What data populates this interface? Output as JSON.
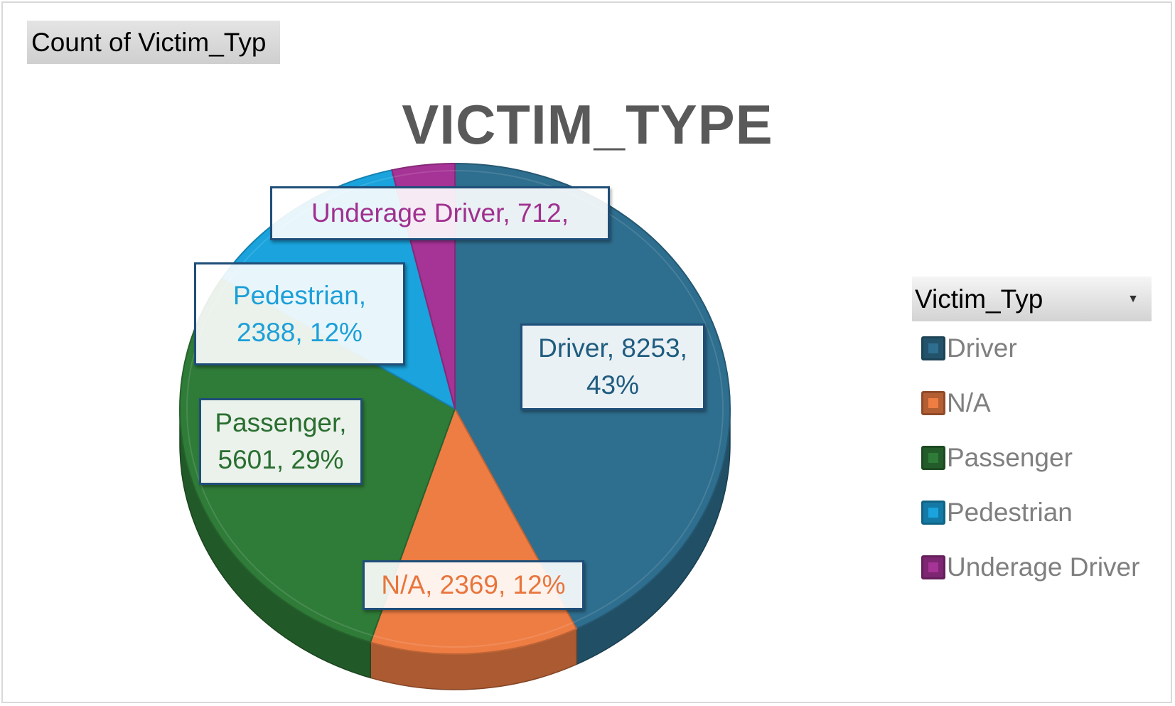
{
  "field_button": {
    "label": "Count of Victim_Typ"
  },
  "legend": {
    "header": "Victim_Typ",
    "dropdown_icon": "dropdown-arrow-icon",
    "items": [
      {
        "label": "Driver",
        "color": "#2e6e8e"
      },
      {
        "label": "N/A",
        "color": "#ee7d44"
      },
      {
        "label": "Passenger",
        "color": "#2f7b38"
      },
      {
        "label": "Pedestrian",
        "color": "#1aa3dc"
      },
      {
        "label": "Underage Driver",
        "color": "#a63396"
      }
    ]
  },
  "chart_data": {
    "type": "pie",
    "title": "VICTIM_TYPE",
    "categories": [
      "Driver",
      "N/A",
      "Passenger",
      "Pedestrian",
      "Underage Driver"
    ],
    "values": [
      8253,
      2369,
      5601,
      2388,
      712
    ],
    "percentages": [
      "43%",
      "12%",
      "29%",
      "12%",
      ""
    ],
    "data_labels": {
      "Driver": [
        "Driver, 8253,",
        "43%"
      ],
      "N/A": [
        "N/A, 2369, 12%"
      ],
      "Passenger": [
        "Passenger,",
        "5601, 29%"
      ],
      "Pedestrian": [
        "Pedestrian,",
        "2388, 12%"
      ],
      "Underage Driver": [
        "Underage Driver, 712,"
      ]
    },
    "colors": {
      "Driver": "#2e6e8e",
      "N/A": "#ee7d44",
      "Passenger": "#2f7b38",
      "Pedestrian": "#1aa3dc",
      "Underage Driver": "#a63396"
    },
    "label_colors": {
      "Driver": "#1f5c80",
      "N/A": "#e8753c",
      "Passenger": "#2a6e30",
      "Pedestrian": "#1c9fd8",
      "Underage Driver": "#a0308f"
    },
    "legend_position": "right",
    "style": "3d-pie"
  }
}
